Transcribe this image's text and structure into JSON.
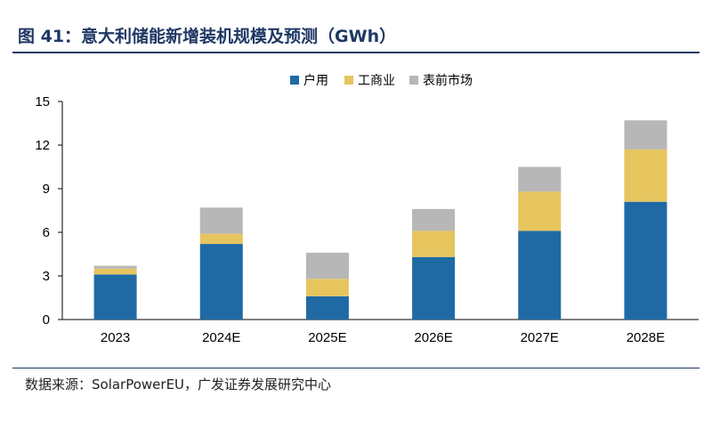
{
  "title": "图 41：意大利储能新增装机规模及预测（GWh）",
  "source": "数据来源：SolarPowerEU，广发证券发展研究中心",
  "chart_data": {
    "type": "bar",
    "stacked": true,
    "title": "",
    "xlabel": "",
    "ylabel": "",
    "categories": [
      "2023",
      "2024E",
      "2025E",
      "2026E",
      "2027E",
      "2028E"
    ],
    "series": [
      {
        "name": "户用",
        "color": "#1f6aa5",
        "values": [
          3.1,
          5.2,
          1.6,
          4.3,
          6.1,
          8.1
        ]
      },
      {
        "name": "工商业",
        "color": "#e6c55f",
        "values": [
          0.4,
          0.7,
          1.2,
          1.8,
          2.7,
          3.6
        ]
      },
      {
        "name": "表前市场",
        "color": "#b7b7b7",
        "values": [
          0.2,
          1.8,
          1.8,
          1.5,
          1.7,
          2.0
        ]
      }
    ],
    "ylim": [
      0,
      15
    ],
    "yticks": [
      0,
      3,
      6,
      9,
      12,
      15
    ],
    "grid": false,
    "legend_position": "top-center"
  }
}
